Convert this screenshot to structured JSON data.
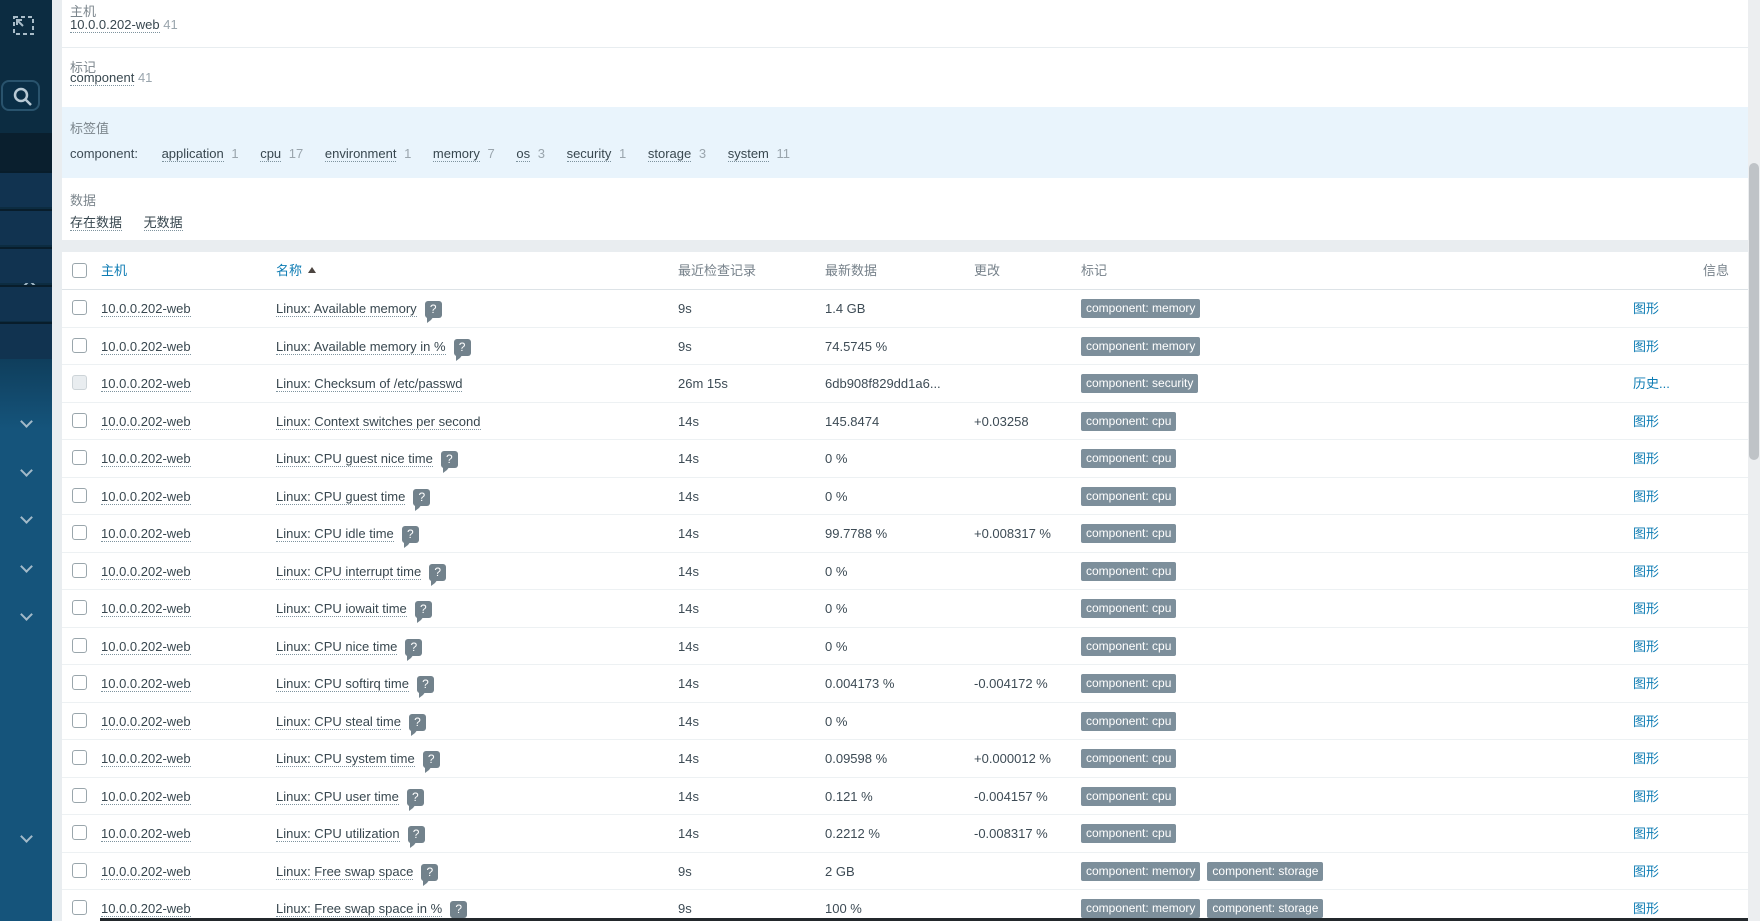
{
  "filter": {
    "host_label": "主机",
    "host": {
      "name": "10.0.0.202-web",
      "count": "41"
    },
    "tags_label": "标记",
    "tag": {
      "name": "component",
      "count": "41"
    },
    "tag_values_label": "标签值",
    "tag_group": "component:",
    "tag_values": [
      {
        "label": "application",
        "count": "1"
      },
      {
        "label": "cpu",
        "count": "17"
      },
      {
        "label": "environment",
        "count": "1"
      },
      {
        "label": "memory",
        "count": "7"
      },
      {
        "label": "os",
        "count": "3"
      },
      {
        "label": "security",
        "count": "1"
      },
      {
        "label": "storage",
        "count": "3"
      },
      {
        "label": "system",
        "count": "11"
      }
    ],
    "data_label": "数据",
    "with_data_label": "存在数据",
    "without_data_label": "无数据"
  },
  "table": {
    "headers": {
      "host": "主机",
      "name": "名称",
      "last_check": "最近检查记录",
      "last_value": "最新数据",
      "change": "更改",
      "tags": "标记",
      "info": "信息"
    },
    "rows": [
      {
        "host": "10.0.0.202-web",
        "name": "Linux: Available memory",
        "help": true,
        "last_check": "9s",
        "last_value": "1.4 GB",
        "change": "",
        "tags": [
          "component: memory"
        ],
        "link": "图形",
        "disabled": false
      },
      {
        "host": "10.0.0.202-web",
        "name": "Linux: Available memory in %",
        "help": true,
        "last_check": "9s",
        "last_value": "74.5745 %",
        "change": "",
        "tags": [
          "component: memory"
        ],
        "link": "图形",
        "disabled": false
      },
      {
        "host": "10.0.0.202-web",
        "name": "Linux: Checksum of /etc/passwd",
        "help": false,
        "last_check": "26m 15s",
        "last_value": "6db908f829dd1a6...",
        "change": "",
        "tags": [
          "component: security"
        ],
        "link": "历史...",
        "disabled": true
      },
      {
        "host": "10.0.0.202-web",
        "name": "Linux: Context switches per second",
        "help": false,
        "last_check": "14s",
        "last_value": "145.8474",
        "change": "+0.03258",
        "tags": [
          "component: cpu"
        ],
        "link": "图形",
        "disabled": false
      },
      {
        "host": "10.0.0.202-web",
        "name": "Linux: CPU guest nice time",
        "help": true,
        "last_check": "14s",
        "last_value": "0 %",
        "change": "",
        "tags": [
          "component: cpu"
        ],
        "link": "图形",
        "disabled": false
      },
      {
        "host": "10.0.0.202-web",
        "name": "Linux: CPU guest time",
        "help": true,
        "last_check": "14s",
        "last_value": "0 %",
        "change": "",
        "tags": [
          "component: cpu"
        ],
        "link": "图形",
        "disabled": false
      },
      {
        "host": "10.0.0.202-web",
        "name": "Linux: CPU idle time",
        "help": true,
        "last_check": "14s",
        "last_value": "99.7788 %",
        "change": "+0.008317 %",
        "tags": [
          "component: cpu"
        ],
        "link": "图形",
        "disabled": false
      },
      {
        "host": "10.0.0.202-web",
        "name": "Linux: CPU interrupt time",
        "help": true,
        "last_check": "14s",
        "last_value": "0 %",
        "change": "",
        "tags": [
          "component: cpu"
        ],
        "link": "图形",
        "disabled": false
      },
      {
        "host": "10.0.0.202-web",
        "name": "Linux: CPU iowait time",
        "help": true,
        "last_check": "14s",
        "last_value": "0 %",
        "change": "",
        "tags": [
          "component: cpu"
        ],
        "link": "图形",
        "disabled": false
      },
      {
        "host": "10.0.0.202-web",
        "name": "Linux: CPU nice time",
        "help": true,
        "last_check": "14s",
        "last_value": "0 %",
        "change": "",
        "tags": [
          "component: cpu"
        ],
        "link": "图形",
        "disabled": false
      },
      {
        "host": "10.0.0.202-web",
        "name": "Linux: CPU softirq time",
        "help": true,
        "last_check": "14s",
        "last_value": "0.004173 %",
        "change": "-0.004172 %",
        "tags": [
          "component: cpu"
        ],
        "link": "图形",
        "disabled": false
      },
      {
        "host": "10.0.0.202-web",
        "name": "Linux: CPU steal time",
        "help": true,
        "last_check": "14s",
        "last_value": "0 %",
        "change": "",
        "tags": [
          "component: cpu"
        ],
        "link": "图形",
        "disabled": false
      },
      {
        "host": "10.0.0.202-web",
        "name": "Linux: CPU system time",
        "help": true,
        "last_check": "14s",
        "last_value": "0.09598 %",
        "change": "+0.000012 %",
        "tags": [
          "component: cpu"
        ],
        "link": "图形",
        "disabled": false
      },
      {
        "host": "10.0.0.202-web",
        "name": "Linux: CPU user time",
        "help": true,
        "last_check": "14s",
        "last_value": "0.121 %",
        "change": "-0.004157 %",
        "tags": [
          "component: cpu"
        ],
        "link": "图形",
        "disabled": false
      },
      {
        "host": "10.0.0.202-web",
        "name": "Linux: CPU utilization",
        "help": true,
        "last_check": "14s",
        "last_value": "0.2212 %",
        "change": "-0.008317 %",
        "tags": [
          "component: cpu"
        ],
        "link": "图形",
        "disabled": false
      },
      {
        "host": "10.0.0.202-web",
        "name": "Linux: Free swap space",
        "help": true,
        "last_check": "9s",
        "last_value": "2 GB",
        "change": "",
        "tags": [
          "component: memory",
          "component: storage"
        ],
        "link": "图形",
        "disabled": false
      },
      {
        "host": "10.0.0.202-web",
        "name": "Linux: Free swap space in %",
        "help": true,
        "last_check": "9s",
        "last_value": "100 %",
        "change": "",
        "tags": [
          "component: memory",
          "component: storage"
        ],
        "link": "图形",
        "disabled": false
      }
    ]
  }
}
